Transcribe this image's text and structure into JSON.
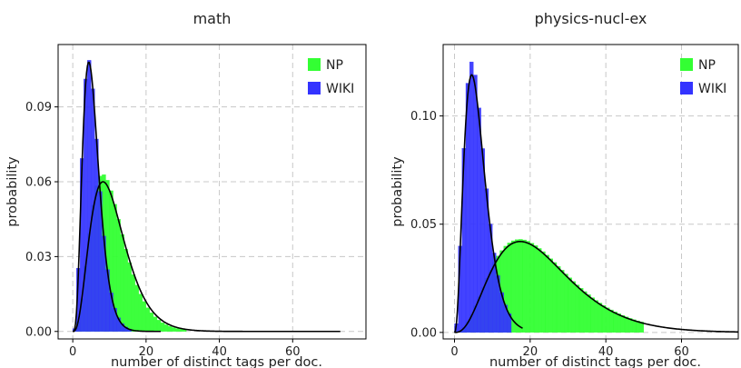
{
  "chart_data": [
    {
      "type": "bar",
      "title": "math",
      "xlabel": "number of distinct tags per doc.",
      "ylabel": "probability",
      "xlim": [
        -4,
        80
      ],
      "ylim": [
        -0.003,
        0.115
      ],
      "xticks": [
        0,
        20,
        40,
        60
      ],
      "yticks": [
        0.0,
        0.03,
        0.06,
        0.09
      ],
      "ytick_labels": [
        "0.00",
        "0.03",
        "0.06",
        "0.09"
      ],
      "grid": true,
      "legend_position": "top-right",
      "series": [
        {
          "name": "NP",
          "color": "#33ff33",
          "dist": {
            "kind": "gamma",
            "shape": 4.2,
            "scale": 2.55,
            "max": 0.063,
            "xmax": 72
          },
          "curve": {
            "kind": "gamma",
            "shape": 4.0,
            "scale": 2.75,
            "max": 0.06,
            "xmax": 73
          }
        },
        {
          "name": "WIKI",
          "color": "#3333ff",
          "dist": {
            "kind": "gamma",
            "shape": 4.6,
            "scale": 1.2,
            "max": 0.109,
            "xmax": 24
          },
          "curve": {
            "kind": "gamma",
            "shape": 4.8,
            "scale": 1.15,
            "max": 0.108,
            "xmax": 24
          }
        }
      ]
    },
    {
      "type": "bar",
      "title": "physics-nucl-ex",
      "xlabel": "number of distinct tags per doc.",
      "ylabel": "probability",
      "xlim": [
        -3,
        75
      ],
      "ylim": [
        -0.003,
        0.133
      ],
      "xticks": [
        0,
        20,
        40,
        60
      ],
      "yticks": [
        0.0,
        0.05,
        0.1
      ],
      "ytick_labels": [
        "0.00",
        "0.05",
        "0.10"
      ],
      "grid": true,
      "legend_position": "top-right",
      "series": [
        {
          "name": "NP",
          "color": "#33ff33",
          "dist": {
            "kind": "gamma",
            "shape": 3.7,
            "scale": 6.4,
            "max": 0.043,
            "xmax": 50
          },
          "curve": {
            "kind": "gamma",
            "shape": 3.8,
            "scale": 6.2,
            "max": 0.042,
            "xmax": 75
          }
        },
        {
          "name": "WIKI",
          "color": "#3333ff",
          "dist": {
            "kind": "gamma",
            "shape": 3.6,
            "scale": 1.75,
            "max": 0.125,
            "xmax": 15
          },
          "curve": {
            "kind": "gamma",
            "shape": 3.6,
            "scale": 1.75,
            "max": 0.119,
            "xmax": 18
          }
        }
      ]
    }
  ]
}
